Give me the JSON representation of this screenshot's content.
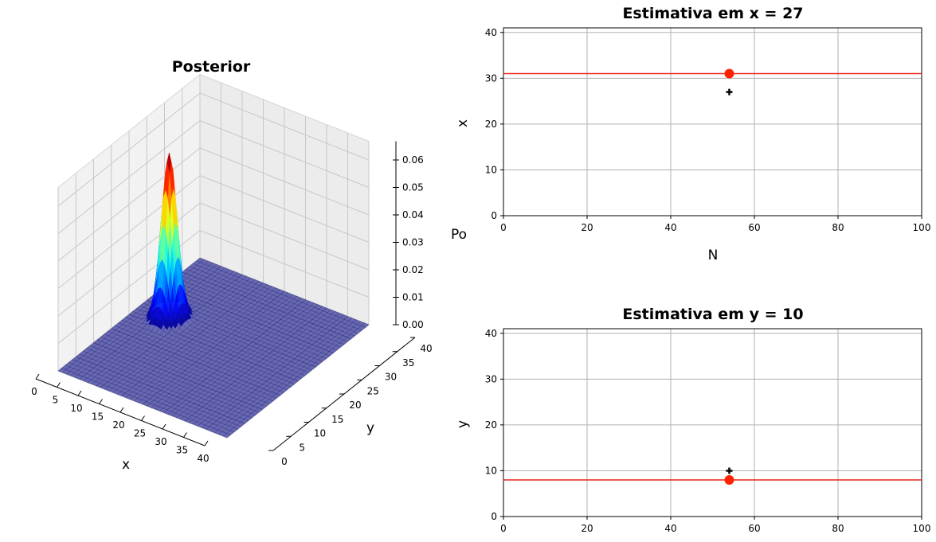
{
  "chart_data": [
    {
      "type": "surface3d",
      "title": "Posterior",
      "xlabel": "x",
      "ylabel": "y",
      "zlabel": "Po",
      "x_ticks": [
        "0",
        "5",
        "10",
        "15",
        "20",
        "25",
        "30",
        "35",
        "40"
      ],
      "y_ticks": [
        "0",
        "5",
        "10",
        "15",
        "20",
        "25",
        "30",
        "35",
        "40"
      ],
      "z_ticks": [
        "0.00",
        "0.01",
        "0.02",
        "0.03",
        "0.04",
        "0.05",
        "0.06"
      ],
      "xlim": [
        0,
        40
      ],
      "ylim": [
        0,
        40
      ],
      "zlim": [
        0,
        0.06
      ],
      "peak": {
        "x": 7,
        "y": 23,
        "z": 0.06
      },
      "colormap": "jet",
      "grid": true
    },
    {
      "type": "scatter",
      "title": "Estimativa em x = 27",
      "xlabel": "N",
      "ylabel": "x",
      "xlim": [
        0,
        100
      ],
      "ylim": [
        0,
        41
      ],
      "x_ticks": [
        "0",
        "20",
        "40",
        "60",
        "80",
        "100"
      ],
      "y_ticks": [
        "0",
        "10",
        "20",
        "30",
        "40"
      ],
      "estimate_line": {
        "y": 31,
        "color": "#e8231a"
      },
      "estimate_point": {
        "x": 54,
        "y": 31,
        "color": "#ff2200"
      },
      "observation_point": {
        "x": 54,
        "y": 27,
        "color": "#000000"
      },
      "grid": true
    },
    {
      "type": "scatter",
      "title": "Estimativa em y = 10",
      "xlabel": "",
      "ylabel": "y",
      "xlim": [
        0,
        100
      ],
      "ylim": [
        0,
        41
      ],
      "x_ticks": [
        "0",
        "20",
        "40",
        "60",
        "80",
        "100"
      ],
      "y_ticks": [
        "0",
        "10",
        "20",
        "30",
        "40"
      ],
      "estimate_line": {
        "y": 8,
        "color": "#e8231a"
      },
      "estimate_point": {
        "x": 54,
        "y": 8,
        "color": "#ff2200"
      },
      "observation_point": {
        "x": 54,
        "y": 10,
        "color": "#000000"
      },
      "grid": true
    }
  ]
}
